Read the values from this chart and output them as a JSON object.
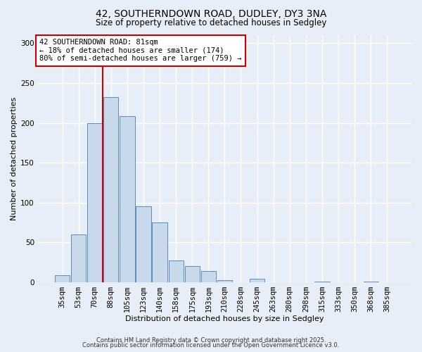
{
  "title_line1": "42, SOUTHERNDOWN ROAD, DUDLEY, DY3 3NA",
  "title_line2": "Size of property relative to detached houses in Sedgley",
  "xlabel": "Distribution of detached houses by size in Sedgley",
  "ylabel": "Number of detached properties",
  "bar_labels": [
    "35sqm",
    "53sqm",
    "70sqm",
    "88sqm",
    "105sqm",
    "123sqm",
    "140sqm",
    "158sqm",
    "175sqm",
    "193sqm",
    "210sqm",
    "228sqm",
    "245sqm",
    "263sqm",
    "280sqm",
    "298sqm",
    "315sqm",
    "333sqm",
    "350sqm",
    "368sqm",
    "385sqm"
  ],
  "bar_values": [
    9,
    60,
    200,
    232,
    208,
    95,
    75,
    27,
    20,
    14,
    3,
    0,
    4,
    0,
    0,
    0,
    1,
    0,
    0,
    1,
    0
  ],
  "bar_color": "#c9d9ec",
  "bar_edge_color": "#5b8db8",
  "vline_x_index": 3,
  "vline_color": "#cc0000",
  "ylim": [
    0,
    310
  ],
  "yticks": [
    0,
    50,
    100,
    150,
    200,
    250,
    300
  ],
  "annotation_text": "42 SOUTHERNDOWN ROAD: 81sqm\n← 18% of detached houses are smaller (174)\n80% of semi-detached houses are larger (759) →",
  "annotation_box_color": "#ffffff",
  "annotation_box_edge_color": "#cc0000",
  "footer_line1": "Contains HM Land Registry data © Crown copyright and database right 2025.",
  "footer_line2": "Contains public sector information licensed under the Open Government Licence v3.0.",
  "background_color": "#e8eef7",
  "grid_color": "#ffffff",
  "title_fontsize": 10,
  "subtitle_fontsize": 8.5,
  "axis_label_fontsize": 8,
  "tick_fontsize": 7.5,
  "annotation_fontsize": 7.5,
  "footer_fontsize": 6
}
